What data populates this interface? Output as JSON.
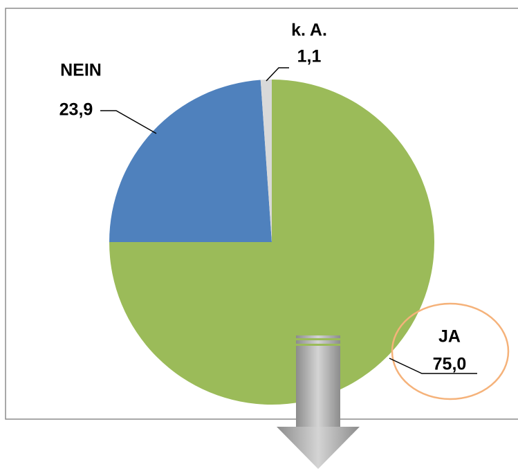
{
  "chart_data": {
    "type": "pie",
    "categories": [
      "JA",
      "NEIN",
      "k. A."
    ],
    "values": [
      75.0,
      23.9,
      1.1
    ],
    "value_labels": [
      "75,0",
      "23,9",
      "1,1"
    ],
    "colors": [
      "#9bbb59",
      "#4f81bd",
      "#d9d9d9"
    ]
  }
}
